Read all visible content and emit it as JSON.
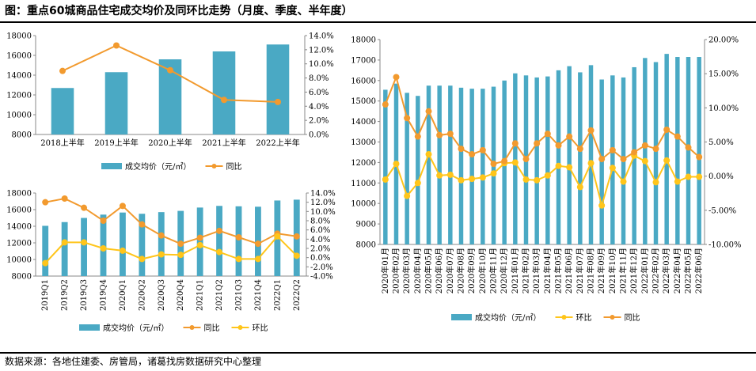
{
  "header": {
    "title": "图：重点60城商品住宅成交均价及同环比走势（月度、季度、半年度）"
  },
  "footer": {
    "source": "数据来源：各地住建委、房管局，诸葛找房数据研究中心整理"
  },
  "colors": {
    "bar": "#4aa9c4",
    "yoy_line": "#f29a2e",
    "qoq_line": "#ffc51a",
    "text": "#000000"
  },
  "chart_data": [
    {
      "type": "bar",
      "categories": [
        "2018上半年",
        "2019上半年",
        "2020上半年",
        "2021上半年",
        "2022上半年"
      ],
      "series": [
        {
          "name": "成交均价（元/㎡）",
          "values": [
            12700,
            14300,
            15600,
            16400,
            17100
          ],
          "axis": "left"
        },
        {
          "name": "同比",
          "type": "line",
          "values": [
            9.0,
            12.6,
            9.1,
            4.9,
            4.6
          ],
          "axis": "right",
          "unit": "%"
        }
      ],
      "ylim": [
        8000,
        18000
      ],
      "yticks": [
        8000,
        10000,
        12000,
        14000,
        16000,
        18000
      ],
      "y2lim": [
        0,
        14
      ],
      "y2ticks": [
        "0.0%",
        "2.0%",
        "4.0%",
        "6.0%",
        "8.0%",
        "10.0%",
        "12.0%",
        "14.0%"
      ],
      "legend": [
        "成交均价（元/㎡）",
        "同比"
      ],
      "legend_position": "bottom"
    },
    {
      "type": "bar",
      "categories": [
        "2019Q1",
        "2019Q2",
        "2019Q3",
        "2019Q4",
        "2020Q1",
        "2020Q2",
        "2020Q3",
        "2020Q4",
        "2021Q1",
        "2021Q2",
        "2021Q3",
        "2021Q4",
        "2022Q1",
        "2022Q2"
      ],
      "series": [
        {
          "name": "成交均价（元/㎡）",
          "values": [
            14050,
            14500,
            15000,
            15400,
            15650,
            15500,
            15700,
            15850,
            16250,
            16450,
            16400,
            16350,
            17100,
            17200
          ],
          "axis": "left"
        },
        {
          "name": "同比",
          "type": "line",
          "values": [
            12.0,
            12.8,
            10.8,
            8.0,
            11.2,
            7.2,
            4.8,
            3.0,
            4.3,
            5.8,
            4.4,
            3.0,
            5.2,
            4.6
          ],
          "axis": "right",
          "unit": "%"
        },
        {
          "name": "环比",
          "type": "line",
          "values": [
            -1.2,
            3.3,
            3.3,
            2.0,
            1.5,
            -0.3,
            0.7,
            0.6,
            2.7,
            1.2,
            -0.3,
            -0.3,
            4.6,
            0.4
          ],
          "axis": "right",
          "unit": "%"
        }
      ],
      "ylim": [
        8000,
        18000
      ],
      "yticks": [
        8000,
        10000,
        12000,
        14000,
        16000,
        18000
      ],
      "y2lim": [
        -4,
        14
      ],
      "y2ticks": [
        "-4.0%",
        "-2.0%",
        "0.0%",
        "2.0%",
        "4.0%",
        "6.0%",
        "8.0%",
        "10.0%",
        "12.0%",
        "14.0%"
      ],
      "legend": [
        "成交均价（元/㎡）",
        "同比",
        "环比"
      ],
      "legend_position": "bottom"
    },
    {
      "type": "bar",
      "categories": [
        "2020年01月",
        "2020年02月",
        "2020年03月",
        "2020年04月",
        "2020年05月",
        "2020年06月",
        "2020年07月",
        "2020年08月",
        "2020年09月",
        "2020年10月",
        "2020年11月",
        "2020年12月",
        "2021年01月",
        "2021年02月",
        "2021年03月",
        "2021年04月",
        "2021年05月",
        "2021年06月",
        "2021年07月",
        "2021年08月",
        "2021年09月",
        "2021年10月",
        "2021年11月",
        "2021年12月",
        "2022年01月",
        "2022年02月",
        "2022年03月",
        "2022年04月",
        "2022年05月",
        "2022年06月"
      ],
      "series": [
        {
          "name": "成交均价（元/㎡）",
          "values": [
            15550,
            15850,
            15400,
            15250,
            15750,
            15750,
            15750,
            15650,
            15600,
            15600,
            15700,
            16000,
            16350,
            16250,
            16150,
            16200,
            16500,
            16700,
            16400,
            16750,
            16050,
            16250,
            16150,
            16650,
            17100,
            16900,
            17300,
            17150,
            17150,
            17150
          ],
          "axis": "left"
        },
        {
          "name": "环比",
          "type": "line",
          "values": [
            -0.5,
            1.8,
            -2.9,
            -1.0,
            3.2,
            0.1,
            0.2,
            -0.6,
            -0.4,
            -0.2,
            0.4,
            1.9,
            2.0,
            -0.5,
            -0.6,
            0.1,
            1.5,
            1.3,
            -1.6,
            1.9,
            -4.3,
            1.2,
            -0.8,
            3.0,
            2.2,
            -0.9,
            2.3,
            -0.8,
            -0.1,
            -0.1
          ],
          "axis": "right",
          "unit": "%"
        },
        {
          "name": "同比",
          "type": "line",
          "values": [
            10.5,
            14.5,
            8.5,
            5.8,
            9.5,
            6.0,
            6.2,
            4.0,
            3.2,
            3.8,
            1.8,
            2.2,
            4.8,
            2.5,
            4.8,
            6.2,
            4.5,
            5.8,
            4.0,
            6.7,
            2.5,
            3.8,
            2.5,
            3.5,
            4.5,
            4.0,
            6.8,
            5.8,
            4.2,
            2.8
          ],
          "axis": "right",
          "unit": "%"
        }
      ],
      "ylim": [
        8000,
        18000
      ],
      "yticks": [
        8000,
        9000,
        10000,
        11000,
        12000,
        13000,
        14000,
        15000,
        16000,
        17000,
        18000
      ],
      "y2lim": [
        -10,
        20
      ],
      "y2ticks": [
        "-10.00%",
        "-5.00%",
        "0.00%",
        "5.00%",
        "10.00%",
        "15.00%",
        "20.00%"
      ],
      "legend": [
        "成交均价（元/㎡）",
        "环比",
        "同比"
      ],
      "legend_position": "bottom"
    }
  ]
}
